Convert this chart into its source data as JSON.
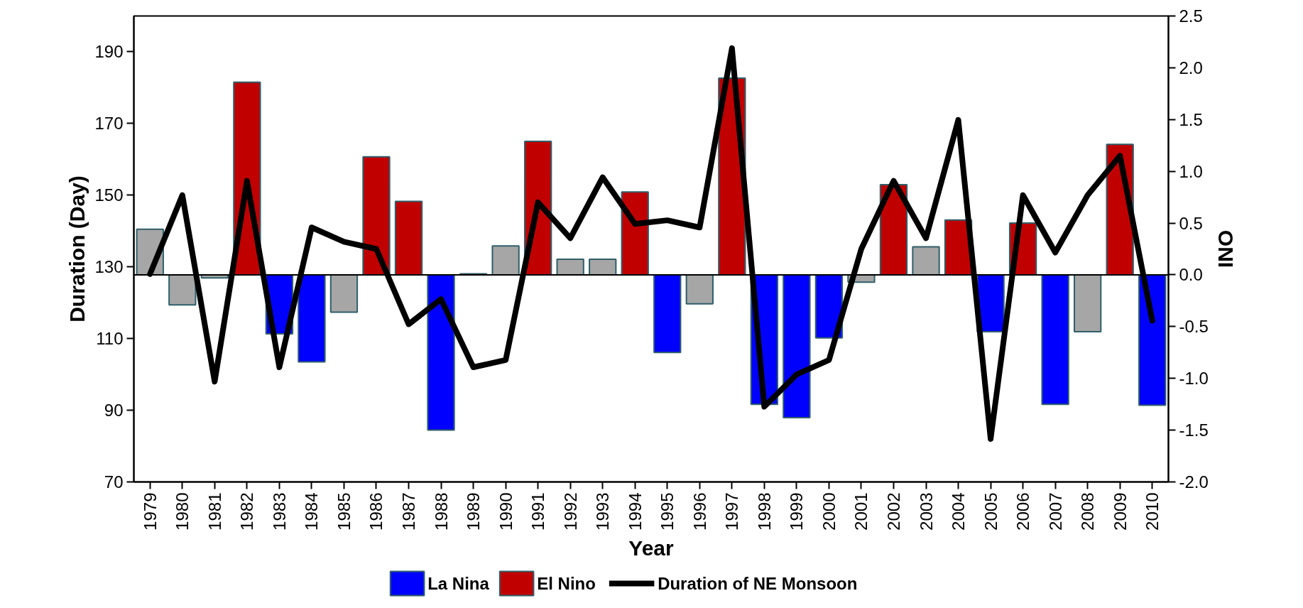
{
  "chart_data": {
    "type": "bar",
    "xlabel": "Year",
    "ylabel": "Duration (Day)",
    "y2label": "ONI",
    "categories": [
      "1979",
      "1980",
      "1981",
      "1982",
      "1983",
      "1984",
      "1985",
      "1986",
      "1987",
      "1988",
      "1989",
      "1990",
      "1991",
      "1992",
      "1993",
      "1994",
      "1995",
      "1996",
      "1997",
      "1998",
      "1999",
      "2000",
      "2001",
      "2002",
      "2003",
      "2004",
      "2005",
      "2006",
      "2007",
      "2008",
      "2009",
      "2010"
    ],
    "series": [
      {
        "name": "La Nina",
        "axis": "y2",
        "color": "#0000ff",
        "values": [
          null,
          null,
          null,
          null,
          -0.57,
          -0.84,
          null,
          null,
          null,
          -1.5,
          null,
          null,
          null,
          null,
          null,
          null,
          -0.75,
          null,
          null,
          -1.25,
          -1.38,
          -0.61,
          null,
          null,
          null,
          null,
          -0.55,
          null,
          -1.25,
          null,
          null,
          -1.26
        ]
      },
      {
        "name": "El Nino",
        "axis": "y2",
        "color": "#c00000",
        "values": [
          null,
          null,
          null,
          1.86,
          null,
          null,
          null,
          1.14,
          0.71,
          null,
          null,
          null,
          1.29,
          null,
          null,
          0.8,
          null,
          null,
          1.9,
          null,
          null,
          null,
          null,
          0.87,
          null,
          0.53,
          null,
          0.5,
          null,
          null,
          1.26,
          null
        ]
      },
      {
        "axis": "y2",
        "color": "#a6a6a6",
        "values": [
          0.44,
          -0.29,
          -0.03,
          null,
          null,
          null,
          -0.36,
          null,
          null,
          null,
          0.01,
          0.28,
          null,
          0.15,
          0.15,
          null,
          null,
          -0.28,
          null,
          null,
          null,
          null,
          -0.07,
          null,
          0.27,
          null,
          null,
          null,
          null,
          -0.55,
          null,
          null
        ]
      },
      {
        "name": "Duration of NE Monsoon",
        "type": "line",
        "axis": "y",
        "color": "#000000",
        "values": [
          128,
          150,
          98,
          154,
          102,
          141,
          137,
          135,
          114,
          121,
          102,
          104,
          148,
          138,
          155,
          142,
          143,
          141,
          191,
          91,
          100,
          104,
          135,
          154,
          138,
          171,
          82,
          150,
          134,
          150,
          161,
          115
        ]
      }
    ],
    "ylim": [
      70,
      200
    ],
    "yticks": [
      70,
      90,
      110,
      130,
      150,
      170,
      190
    ],
    "y2lim": [
      -2.0,
      2.5
    ],
    "y2ticks": [
      {
        "value": -2,
        "label": "-2.0"
      },
      {
        "value": -1.5,
        "label": "-1.5"
      },
      {
        "value": -1,
        "label": "-1.0"
      },
      {
        "value": -0.5,
        "label": "-0.5"
      },
      {
        "value": 0,
        "label": "0.0"
      },
      {
        "value": 0.5,
        "label": "0.5"
      },
      {
        "value": 1,
        "label": "1.0"
      },
      {
        "value": 1.5,
        "label": "1.5"
      },
      {
        "value": 2,
        "label": "2.0"
      },
      {
        "value": 2.5,
        "label": "2.5"
      }
    ],
    "ref_lines": [
      {
        "axis": "y2",
        "value": 0,
        "color": "#000000"
      }
    ],
    "legend": "bottom",
    "marker": "none",
    "line_style": "solid"
  }
}
